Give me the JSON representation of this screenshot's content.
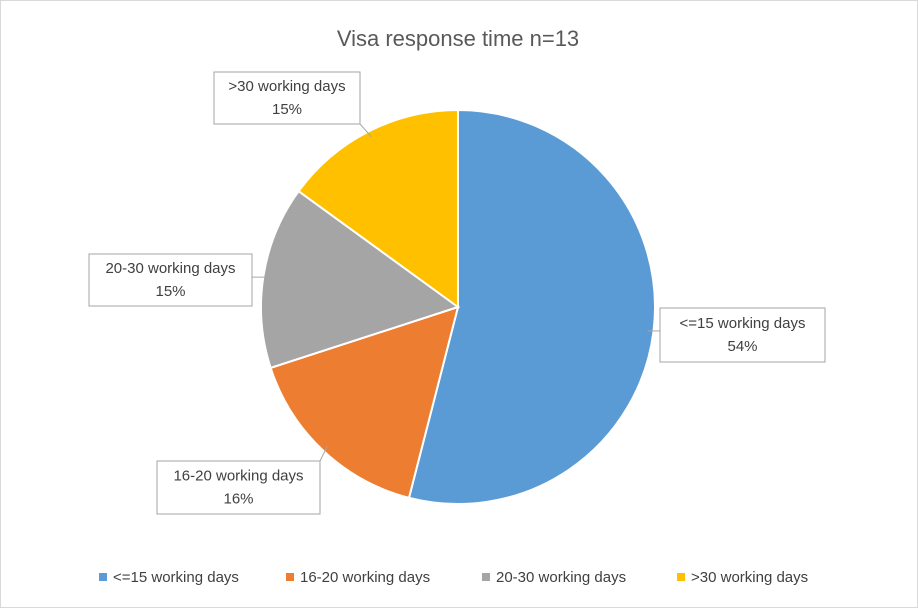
{
  "chart_data": {
    "type": "pie",
    "title": "Visa response time n=13",
    "categories": [
      "<=15 working days",
      "16-20 working days",
      "20-30 working days",
      ">30 working days"
    ],
    "values": [
      54,
      16,
      15,
      15
    ],
    "value_labels": [
      "54%",
      "16%",
      "15%",
      "15%"
    ],
    "colors": [
      "#5b9bd5",
      "#ed7d31",
      "#a5a5a5",
      "#ffc000"
    ],
    "legend": "bottom"
  }
}
